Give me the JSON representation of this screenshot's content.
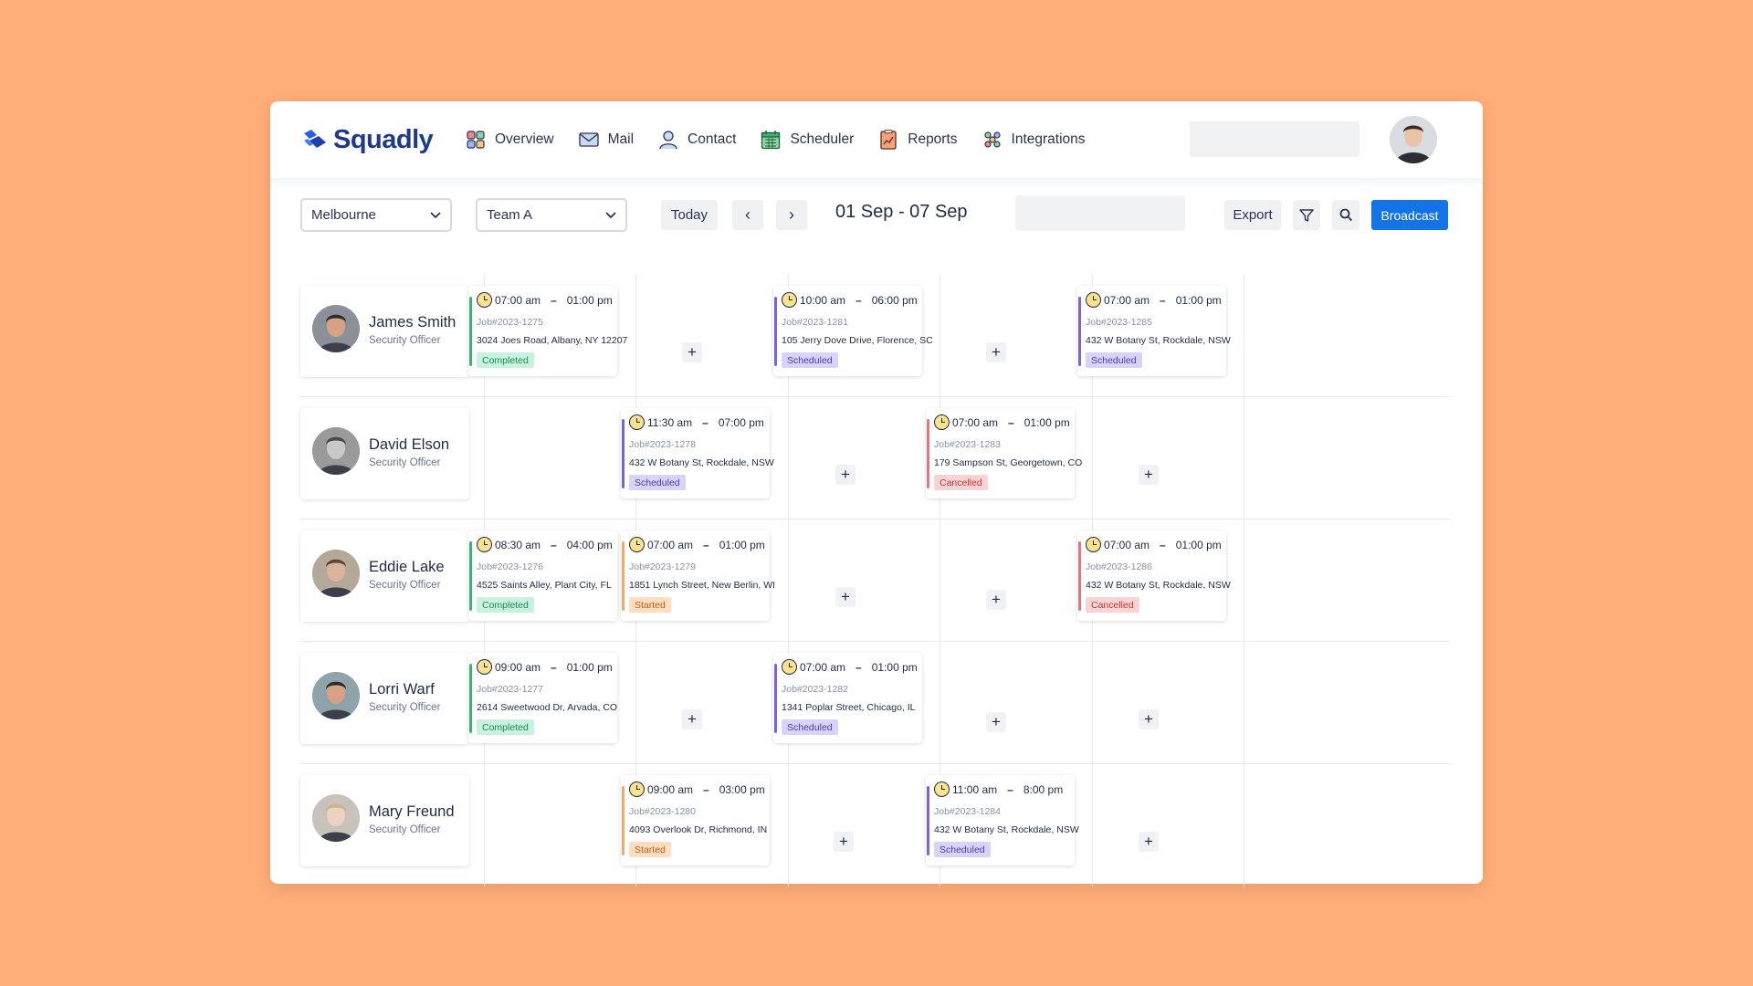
{
  "brand": {
    "name": "Squadly"
  },
  "nav": [
    {
      "label": "Overview",
      "icon": "overview-icon"
    },
    {
      "label": "Mail",
      "icon": "mail-icon"
    },
    {
      "label": "Contact",
      "icon": "contact-icon"
    },
    {
      "label": "Scheduler",
      "icon": "calendar-icon"
    },
    {
      "label": "Reports",
      "icon": "reports-icon"
    },
    {
      "label": "Integrations",
      "icon": "integrations-icon"
    }
  ],
  "toolbar": {
    "location": "Melbourne",
    "team": "Team A",
    "today": "Today",
    "prev": "‹",
    "next": "›",
    "date_range": "01 Sep - 07 Sep",
    "export": "Export",
    "broadcast": "Broadcast"
  },
  "colors": {
    "accent": "#1473E6",
    "background": "#FFAE78",
    "completed": "#3DB37A",
    "scheduled": "#7B61E8",
    "cancelled": "#F0707A",
    "started": "#F6A66B"
  },
  "staff": [
    {
      "name": "James Smith",
      "role": "Security Officer",
      "shifts": [
        {
          "start": "07:00 am",
          "end": "01:00 pm",
          "job": "Job#2023-1275",
          "address": "3024 Joes Road, Albany, NY 12207",
          "status": "Completed"
        },
        null,
        {
          "start": "10:00 am",
          "end": "06:00 pm",
          "job": "Job#2023-1281",
          "address": "105 Jerry Dove Drive, Florence, SC",
          "status": "Scheduled"
        },
        null,
        {
          "start": "07:00 am",
          "end": "01:00 pm",
          "job": "Job#2023-1285",
          "address": "432 W Botany St, Rockdale, NSW",
          "status": "Scheduled"
        }
      ]
    },
    {
      "name": "David Elson",
      "role": "Security Officer",
      "shifts": [
        null,
        {
          "start": "11:30 am",
          "end": "07:00 pm",
          "job": "Job#2023-1278",
          "address": "432 W Botany St, Rockdale, NSW",
          "status": "Scheduled"
        },
        null,
        {
          "start": "07:00 am",
          "end": "01:00 pm",
          "job": "Job#2023-1283",
          "address": "179 Sampson St, Georgetown, CO",
          "status": "Cancelled"
        },
        null
      ]
    },
    {
      "name": "Eddie Lake",
      "role": "Security Officer",
      "shifts": [
        {
          "start": "08:30 am",
          "end": "04:00 pm",
          "job": "Job#2023-1276",
          "address": "4525 Saints Alley, Plant City, FL",
          "status": "Completed"
        },
        {
          "start": "07:00 am",
          "end": "01:00 pm",
          "job": "Job#2023-1279",
          "address": "1851 Lynch Street, New Berlin, WI",
          "status": "Started"
        },
        null,
        null,
        {
          "start": "07:00 am",
          "end": "01:00 pm",
          "job": "Job#2023-1286",
          "address": "432 W Botany St, Rockdale, NSW",
          "status": "Cancelled"
        }
      ]
    },
    {
      "name": "Lorri Warf",
      "role": "Security Officer",
      "shifts": [
        {
          "start": "09:00 am",
          "end": "01:00 pm",
          "job": "Job#2023-1277",
          "address": "2614 Sweetwood Dr, Arvada, CO",
          "status": "Completed"
        },
        null,
        {
          "start": "07:00 am",
          "end": "01:00 pm",
          "job": "Job#2023-1282",
          "address": "1341 Poplar Street, Chicago, IL",
          "status": "Scheduled"
        },
        null,
        null
      ]
    },
    {
      "name": "Mary Freund",
      "role": "Security Officer",
      "shifts": [
        null,
        {
          "start": "09:00 am",
          "end": "03:00 pm",
          "job": "Job#2023-1280",
          "address": "4093 Overlook Dr, Richmond, IN",
          "status": "Started"
        },
        null,
        {
          "start": "11:00 am",
          "end": "8:00 pm",
          "job": "Job#2023-1284",
          "address": "432 W Botany St, Rockdale, NSW",
          "status": "Scheduled"
        },
        null
      ]
    }
  ]
}
